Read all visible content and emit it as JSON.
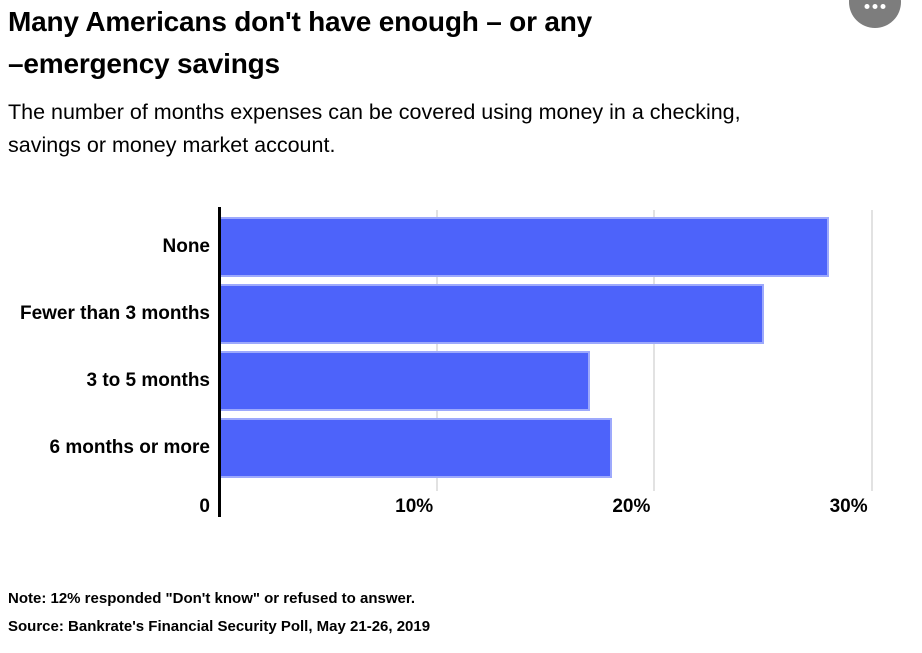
{
  "header": {
    "title_line1": "Many Americans don't have enough – or any",
    "title_line2": "–emergency savings",
    "subtitle_line1": "The number of months expenses can be covered using money in a checking,",
    "subtitle_line2": "savings or money market account.",
    "menu_icon": "ellipsis-icon"
  },
  "chart_data": {
    "type": "bar",
    "orientation": "horizontal",
    "title": "Many Americans don't have enough – or any –emergency savings",
    "subtitle": "The number of months expenses can be covered using money in a checking, savings or money market account.",
    "categories": [
      "None",
      "Fewer than 3 months",
      "3 to 5 months",
      "6 months or more"
    ],
    "values": [
      28,
      25,
      17,
      18
    ],
    "unit": "%",
    "x_tick_labels": [
      "0",
      "10%",
      "20%",
      "30%"
    ],
    "x_tick_values": [
      0,
      10,
      20,
      30
    ],
    "xlim": [
      0,
      31
    ],
    "grid": true,
    "legend": "none",
    "bar_color": "#4d63fa",
    "axis_color": "#000000",
    "gridline_color": "#e2e2e2"
  },
  "footer": {
    "note": "Note: 12% responded \"Don't know\" or refused to answer.",
    "source": "Source: Bankrate's Financial Security Poll, May 21-26, 2019"
  },
  "colors": {
    "accent": "#4d63fa",
    "menu_circle": "#7d7d7d",
    "text": "#000000"
  }
}
